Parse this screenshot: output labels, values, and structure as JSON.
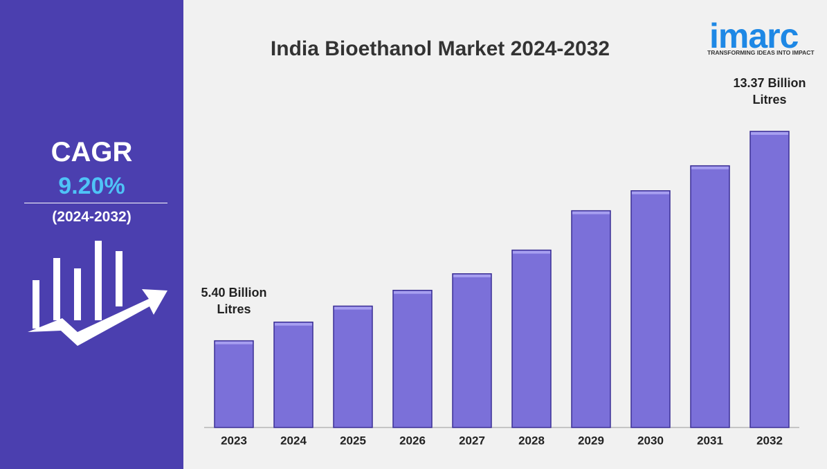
{
  "kpi": {
    "label": "CAGR",
    "value": "9.20%",
    "period": "(2024-2032)"
  },
  "brand": {
    "name": "imarc",
    "tagline": "TRANSFORMING IDEAS INTO IMPACT"
  },
  "chart_data": {
    "type": "bar",
    "title": "India Bioethanol Market 2024-2032",
    "categories": [
      "2023",
      "2024",
      "2025",
      "2026",
      "2027",
      "2028",
      "2029",
      "2030",
      "2031",
      "2032"
    ],
    "values": [
      5.4,
      6.11,
      6.72,
      7.32,
      7.95,
      8.85,
      10.35,
      11.11,
      12.06,
      13.37
    ],
    "value_labels": [
      "5.40 Billion Litres",
      null,
      null,
      null,
      null,
      null,
      null,
      null,
      null,
      "13.37 Billion Litres"
    ],
    "color": "#7b70d9",
    "ylim": [
      2.1,
      14.5
    ]
  }
}
